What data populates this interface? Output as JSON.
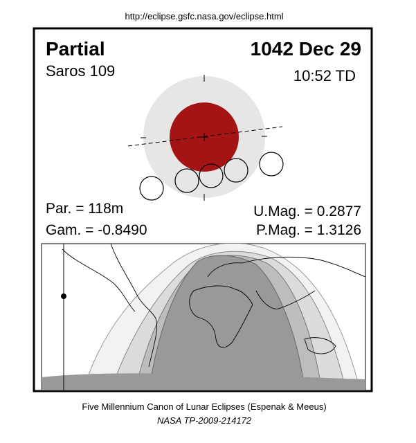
{
  "header": {
    "url": "http://eclipse.gsfc.nasa.gov/eclipse.html"
  },
  "panel": {
    "type_label": "Partial",
    "date": "1042 Dec 29",
    "saros": "Saros 109",
    "time": "10:52 TD",
    "parameters": {
      "par": "Par. = 118m",
      "gam": "Gam. = -0.8490",
      "umag": "U.Mag. = 0.2877",
      "pmag": "P.Mag. = 1.3126"
    }
  },
  "footer": {
    "line1": "Five Millennium Canon of Lunar Eclipses (Espenak & Meeus)",
    "line2": "NASA TP-2009-214172"
  }
}
